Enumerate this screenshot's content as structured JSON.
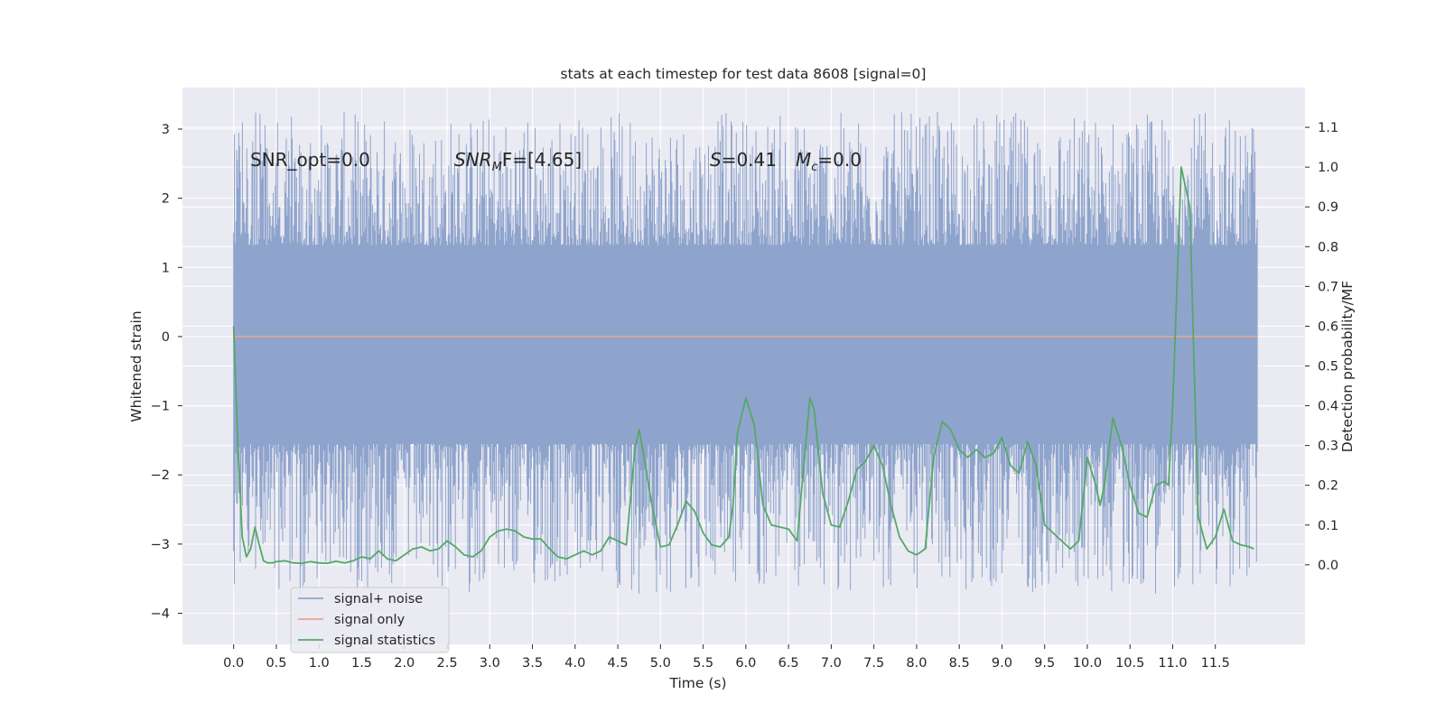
{
  "chart_data": {
    "type": "line",
    "title": "stats at each timestep for test data 8608 [signal=0]",
    "xlabel": "Time (s)",
    "ylabel": "Whitened strain",
    "y2label": "Detection probability/MF",
    "xlim": [
      -0.6,
      12.55
    ],
    "ylim": [
      -4.45,
      3.6
    ],
    "y2lim": [
      -0.2,
      1.2
    ],
    "grid": true,
    "legend_position": "lower-left",
    "x_ticks": [
      0.0,
      0.5,
      1.0,
      1.5,
      2.0,
      2.5,
      3.0,
      3.5,
      4.0,
      4.5,
      5.0,
      5.5,
      6.0,
      6.5,
      7.0,
      7.5,
      8.0,
      8.5,
      9.0,
      9.5,
      10.0,
      10.5,
      11.0,
      11.5
    ],
    "x_tick_labels": [
      "0.0",
      "0.5",
      "1.0",
      "1.5",
      "2.0",
      "2.5",
      "3.0",
      "3.5",
      "4.0",
      "4.5",
      "5.0",
      "5.5",
      "6.0",
      "6.5",
      "7.0",
      "7.5",
      "8.0",
      "8.5",
      "9.0",
      "9.5",
      "10.0",
      "10.5",
      "11.0",
      "11.5"
    ],
    "y_ticks": [
      3,
      2,
      1,
      0,
      -1,
      -2,
      -3,
      -4
    ],
    "y_tick_labels": [
      "3",
      "2",
      "1",
      "0",
      "−1",
      "−2",
      "−3",
      "−4"
    ],
    "y2_ticks": [
      1.1,
      1.0,
      0.9,
      0.8,
      0.7,
      0.6,
      0.5,
      0.4,
      0.3,
      0.2,
      0.1,
      0.0
    ],
    "y2_tick_labels": [
      "1.1",
      "1.0",
      "0.9",
      "0.8",
      "0.7",
      "0.6",
      "0.5",
      "0.4",
      "0.3",
      "0.2",
      "0.1",
      "0.0"
    ],
    "annotations": {
      "snr_opt": "SNR_opt=0.0",
      "snr_mf": {
        "base": "SNR",
        "sub": "M",
        "rest": "F=[4.65]"
      },
      "stat_s": {
        "sym": "S",
        "rest": "=0.41"
      },
      "chirp_mass": {
        "sym": "M",
        "sub": "c",
        "rest": "=0.0"
      }
    },
    "series": [
      {
        "name": "signal+ noise",
        "color": "#8fa4cc",
        "axis": "left",
        "envelope_y_range": [
          -4.1,
          3.25
        ],
        "dense_band_y_range": [
          -1.55,
          1.32
        ],
        "x_range": [
          0.0,
          11.99
        ]
      },
      {
        "name": "signal only",
        "color": "#e8a88a",
        "axis": "left",
        "x": [
          0.0,
          11.99
        ],
        "y": [
          0.0,
          0.0
        ]
      },
      {
        "name": "signal statistics",
        "color": "#55a868",
        "axis": "right",
        "x": [
          0.0,
          0.05,
          0.1,
          0.15,
          0.2,
          0.25,
          0.3,
          0.35,
          0.4,
          0.45,
          0.5,
          0.6,
          0.7,
          0.8,
          0.9,
          1.0,
          1.1,
          1.2,
          1.3,
          1.4,
          1.5,
          1.6,
          1.7,
          1.8,
          1.9,
          2.0,
          2.1,
          2.2,
          2.3,
          2.4,
          2.5,
          2.6,
          2.7,
          2.8,
          2.9,
          3.0,
          3.1,
          3.2,
          3.3,
          3.4,
          3.5,
          3.6,
          3.7,
          3.8,
          3.9,
          4.0,
          4.1,
          4.2,
          4.3,
          4.4,
          4.5,
          4.6,
          4.7,
          4.75,
          4.8,
          4.9,
          5.0,
          5.1,
          5.2,
          5.3,
          5.4,
          5.5,
          5.6,
          5.7,
          5.8,
          5.85,
          5.9,
          6.0,
          6.1,
          6.2,
          6.3,
          6.4,
          6.5,
          6.6,
          6.7,
          6.75,
          6.8,
          6.9,
          7.0,
          7.1,
          7.2,
          7.3,
          7.4,
          7.5,
          7.6,
          7.7,
          7.8,
          7.9,
          8.0,
          8.1,
          8.2,
          8.3,
          8.4,
          8.5,
          8.6,
          8.7,
          8.8,
          8.9,
          9.0,
          9.1,
          9.2,
          9.3,
          9.4,
          9.5,
          9.6,
          9.7,
          9.8,
          9.9,
          10.0,
          10.1,
          10.15,
          10.2,
          10.3,
          10.4,
          10.5,
          10.6,
          10.7,
          10.8,
          10.9,
          10.95,
          11.0,
          11.1,
          11.2,
          11.3,
          11.4,
          11.5,
          11.6,
          11.7,
          11.8,
          11.9,
          11.95
        ],
        "y": [
          0.6,
          0.3,
          0.07,
          0.02,
          0.04,
          0.095,
          0.05,
          0.01,
          0.005,
          0.005,
          0.008,
          0.01,
          0.005,
          0.004,
          0.008,
          0.005,
          0.004,
          0.009,
          0.005,
          0.01,
          0.02,
          0.015,
          0.035,
          0.015,
          0.01,
          0.025,
          0.04,
          0.045,
          0.035,
          0.04,
          0.06,
          0.045,
          0.025,
          0.02,
          0.035,
          0.07,
          0.085,
          0.09,
          0.085,
          0.07,
          0.065,
          0.065,
          0.04,
          0.02,
          0.015,
          0.025,
          0.035,
          0.025,
          0.035,
          0.07,
          0.06,
          0.05,
          0.29,
          0.34,
          0.28,
          0.15,
          0.045,
          0.05,
          0.1,
          0.16,
          0.135,
          0.08,
          0.05,
          0.045,
          0.07,
          0.15,
          0.33,
          0.42,
          0.35,
          0.15,
          0.1,
          0.095,
          0.09,
          0.06,
          0.3,
          0.42,
          0.39,
          0.18,
          0.1,
          0.095,
          0.16,
          0.24,
          0.26,
          0.3,
          0.25,
          0.15,
          0.07,
          0.035,
          0.025,
          0.04,
          0.27,
          0.36,
          0.34,
          0.29,
          0.27,
          0.29,
          0.27,
          0.28,
          0.32,
          0.25,
          0.23,
          0.31,
          0.25,
          0.1,
          0.08,
          0.06,
          0.04,
          0.06,
          0.27,
          0.2,
          0.15,
          0.2,
          0.37,
          0.3,
          0.2,
          0.13,
          0.12,
          0.2,
          0.21,
          0.2,
          0.4,
          1.0,
          0.9,
          0.12,
          0.04,
          0.07,
          0.14,
          0.06,
          0.05,
          0.045,
          0.04
        ]
      }
    ]
  }
}
